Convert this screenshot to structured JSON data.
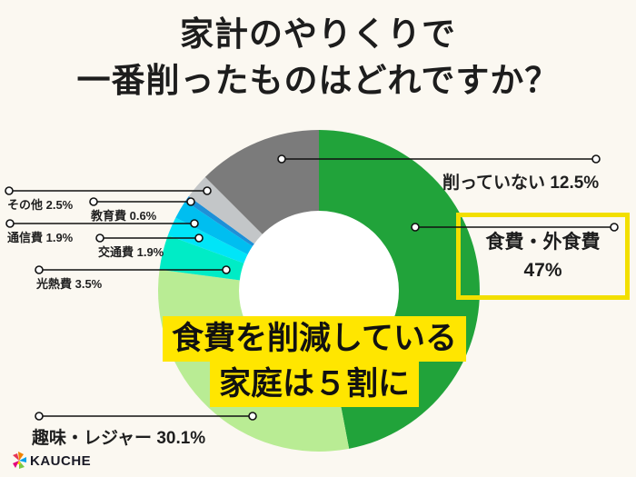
{
  "title": {
    "line1": "家計のやりくりで",
    "line2": "一番削ったものはどれですか？"
  },
  "chart_data": {
    "type": "pie",
    "donut": true,
    "title": "家計のやりくりで一番削ったものはどれですか？",
    "start_angle_deg": 0,
    "direction": "clockwise",
    "inner_radius_ratio": 0.5,
    "legend": "none, leader-line labels",
    "segments": [
      {
        "label": "食費・外食費",
        "value": 47.0,
        "display": "食費・外食費 47%",
        "color": "#21a33a",
        "highlighted": true
      },
      {
        "label": "趣味・レジャー",
        "value": 30.1,
        "display": "趣味・レジャー 30.1%",
        "color": "#b9ec94"
      },
      {
        "label": "光熱費",
        "value": 3.5,
        "display": "光熱費 3.5%",
        "color": "#00ecc6"
      },
      {
        "label": "交通費",
        "value": 1.9,
        "display": "交通費 1.9%",
        "color": "#00e5f8"
      },
      {
        "label": "通信費",
        "value": 1.9,
        "display": "通信費 1.9%",
        "color": "#00bef0"
      },
      {
        "label": "教育費",
        "value": 0.6,
        "display": "教育費 0.6%",
        "color": "#1e90d8"
      },
      {
        "label": "その他",
        "value": 2.5,
        "display": "その他 2.5%",
        "color": "#c3c6c8"
      },
      {
        "label": "削っていない",
        "value": 12.5,
        "display": "削っていない 12.5%",
        "color": "#7b7b7b"
      }
    ]
  },
  "highlight_box": {
    "label": "食費・外食費",
    "value": "47%"
  },
  "callout": {
    "line1": "食費を削減している",
    "line2": "家庭は５割に"
  },
  "logo": {
    "text": "KAUCHE"
  },
  "colors": {
    "background": "#fbf8f1",
    "donut_hole": "#ffffff",
    "title_text": "#1d1d1d",
    "label_text": "#1f1f1f",
    "leader_line": "#111111",
    "callout_highlight": "#ffe600",
    "highlight_box_border": "#f2df00"
  }
}
